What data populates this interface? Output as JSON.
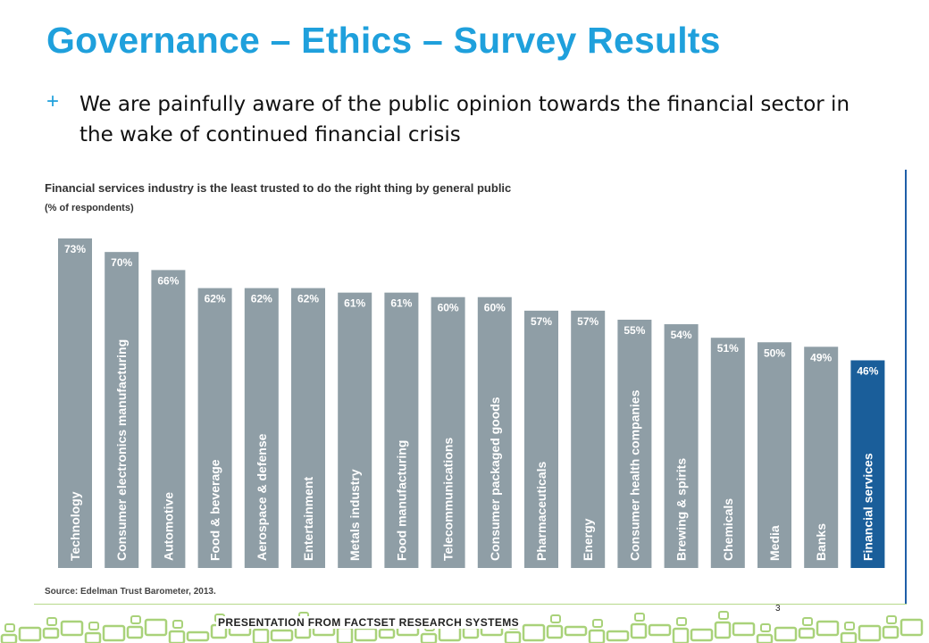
{
  "slide": {
    "title": "Governance – Ethics – Survey Results",
    "bullet_mark": "+",
    "bullet_text": "We are painfully aware of the public opinion towards the financial sector in the wake of continued financial crisis",
    "footer_label": "PRESENTATION FROM FACTSET RESEARCH SYSTEMS",
    "page_number": "3"
  },
  "colors": {
    "title": "#1fa0dc",
    "bar": "#8f9ea6",
    "bar_highlight": "#1a5e9a",
    "bar_label": "#ffffff",
    "footer_green": "#a9d27a"
  },
  "chart_data": {
    "type": "bar",
    "title": "Financial services industry is the least trusted to do the right thing by general public",
    "subtitle": "(% of respondents)",
    "source": "Source: Edelman Trust Barometer, 2013.",
    "categories": [
      "Technology",
      "Consumer electronics manufacturing",
      "Automotive",
      "Food & beverage",
      "Aerospace & defense",
      "Entertainment",
      "Metals industry",
      "Food manufacturing",
      "Telecommunications",
      "Consumer packaged goods",
      "Pharmaceuticals",
      "Energy",
      "Consumer health companies",
      "Brewing & spirits",
      "Chemicals",
      "Media",
      "Banks",
      "Financial services"
    ],
    "values": [
      73,
      70,
      66,
      62,
      62,
      62,
      61,
      61,
      60,
      60,
      57,
      57,
      55,
      54,
      51,
      50,
      49,
      46
    ],
    "value_labels": [
      "73%",
      "70%",
      "66%",
      "62%",
      "62%",
      "62%",
      "61%",
      "61%",
      "60%",
      "60%",
      "57%",
      "57%",
      "55%",
      "54%",
      "51%",
      "50%",
      "49%",
      "46%"
    ],
    "highlight": "Financial services",
    "ylim": [
      0,
      73
    ],
    "grid": false
  }
}
